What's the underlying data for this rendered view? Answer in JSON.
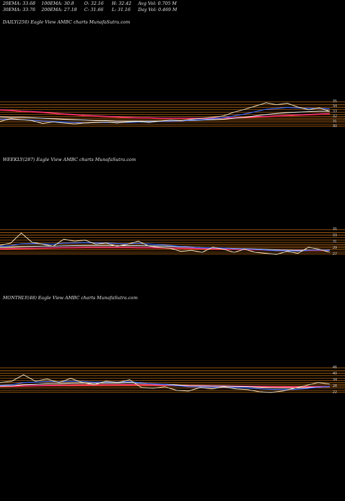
{
  "header": {
    "ema20": "20EMA: 33.68",
    "ema100": "100EMA: 30.8",
    "open": "O: 32.16",
    "high": "H: 32.42",
    "avg_vol": "Avg Vol: 0.705 M",
    "ema30": "30EMA: 33.76",
    "ema200": "200EMA: 27.18",
    "close": "C: 31.66",
    "low": "L: 31.16",
    "day_vol": "Day Vol: 0.469 M"
  },
  "colors": {
    "price": "#f5e6c0",
    "ema_blue": "#3a6bff",
    "ema_white": "#ffffff",
    "ema_pink": "#ff3aa0",
    "ema_red": "#ff2a2a",
    "hline": "#d4781a",
    "background": "#000000"
  },
  "chart_data": [
    {
      "type": "line",
      "title": "DAILY(250) Eagle  View  AMBC charts MunafaSutra.com",
      "right_ticks": [
        "35",
        "34",
        "33",
        "32",
        "31",
        "30"
      ],
      "price": [
        31.0,
        31.6,
        31.4,
        31.2,
        30.6,
        30.9,
        30.7,
        30.5,
        30.7,
        30.8,
        30.9,
        30.7,
        30.9,
        31.0,
        30.8,
        31.1,
        31.3,
        31.2,
        31.5,
        31.7,
        31.9,
        32.2,
        33.0,
        33.6,
        34.3,
        35.0,
        34.6,
        34.9,
        34.1,
        33.5,
        33.9,
        33.2
      ],
      "ema_fast": [
        31.5,
        31.5,
        31.4,
        31.3,
        31.1,
        31.0,
        30.9,
        30.8,
        30.7,
        30.8,
        30.8,
        30.8,
        30.8,
        30.9,
        30.9,
        31.0,
        31.1,
        31.1,
        31.3,
        31.4,
        31.6,
        31.8,
        32.2,
        32.6,
        33.1,
        33.6,
        33.8,
        34.0,
        33.9,
        33.8,
        33.8,
        33.7
      ],
      "ema_slow": [
        32.0,
        31.9,
        31.9,
        31.8,
        31.7,
        31.6,
        31.5,
        31.4,
        31.3,
        31.2,
        31.2,
        31.1,
        31.1,
        31.1,
        31.1,
        31.1,
        31.1,
        31.2,
        31.2,
        31.3,
        31.4,
        31.5,
        31.7,
        31.9,
        32.2,
        32.5,
        32.7,
        32.9,
        33.0,
        33.1,
        33.2,
        33.2
      ],
      "ema_long": [
        33.4,
        33.3,
        33.1,
        33.0,
        32.9,
        32.7,
        32.5,
        32.4,
        32.2,
        32.1,
        32.0,
        31.9,
        31.8,
        31.7,
        31.7,
        31.6,
        31.6,
        31.6,
        31.6,
        31.6,
        31.6,
        31.7,
        31.7,
        31.8,
        31.9,
        32.0,
        32.1,
        32.2,
        32.3,
        32.4,
        32.5,
        32.6
      ],
      "ylim": [
        29.5,
        36
      ]
    },
    {
      "type": "line",
      "title": "WEEKLY(287) Eagle  View  AMBC charts MunafaSutra.com",
      "right_ticks": [
        "35",
        "33",
        "31",
        "29",
        "27"
      ],
      "price": [
        30.5,
        31.5,
        36.5,
        32.0,
        31.0,
        30.0,
        33.5,
        32.5,
        33.0,
        31.0,
        31.5,
        30.0,
        31.0,
        32.5,
        30.0,
        29.5,
        29.0,
        27.5,
        28.0,
        27.0,
        29.5,
        28.5,
        27.0,
        28.5,
        27.0,
        26.5,
        26.0,
        27.5,
        26.5,
        29.5,
        28.5,
        27.0
      ],
      "ema_fast": [
        30.0,
        30.3,
        31.2,
        31.3,
        31.2,
        31.0,
        31.5,
        31.6,
        31.8,
        31.6,
        31.6,
        31.3,
        31.2,
        31.4,
        31.1,
        30.8,
        30.4,
        29.9,
        29.6,
        29.2,
        29.2,
        29.1,
        28.7,
        28.7,
        28.4,
        28.1,
        27.8,
        27.8,
        27.6,
        28.0,
        28.1,
        27.9
      ],
      "ema_slow": [
        29.5,
        29.6,
        29.8,
        29.9,
        30.0,
        30.0,
        30.2,
        30.3,
        30.4,
        30.4,
        30.4,
        30.3,
        30.3,
        30.3,
        30.2,
        30.1,
        29.9,
        29.7,
        29.5,
        29.3,
        29.2,
        29.1,
        28.9,
        28.8,
        28.6,
        28.4,
        28.2,
        28.1,
        28.0,
        28.1,
        28.1,
        28.1
      ],
      "ema_long": [
        28.5,
        28.6,
        28.7,
        28.8,
        28.9,
        29.0,
        29.1,
        29.1,
        29.2,
        29.2,
        29.2,
        29.2,
        29.2,
        29.1,
        29.1,
        29.0,
        28.9,
        28.8,
        28.7,
        28.6,
        28.5,
        28.4,
        28.3,
        28.2,
        28.1,
        28.0,
        27.9,
        27.8,
        27.8,
        27.8,
        27.8,
        27.8
      ],
      "ylim": [
        25,
        40
      ]
    },
    {
      "type": "line",
      "title": "MONTHLY(48) Eagle  View  AMBC charts MunafaSutra.com",
      "right_ticks": [
        "46",
        "40",
        "34",
        "28",
        "22"
      ],
      "price": [
        34.0,
        36.0,
        45.0,
        36.0,
        39.0,
        34.0,
        40.0,
        34.0,
        31.0,
        36.0,
        34.0,
        38.0,
        27.0,
        26.0,
        28.0,
        23.0,
        22.0,
        27.0,
        25.0,
        28.0,
        25.0,
        24.0,
        21.0,
        20.0,
        22.0,
        26.0,
        30.0,
        34.0,
        32.0
      ],
      "ema_fast": [
        30.0,
        31.0,
        34.0,
        34.5,
        35.5,
        35.0,
        36.0,
        35.5,
        34.5,
        34.8,
        34.6,
        35.3,
        33.5,
        32.0,
        31.2,
        29.5,
        28.0,
        27.8,
        27.3,
        27.4,
        26.9,
        26.4,
        25.3,
        24.3,
        23.9,
        24.3,
        25.5,
        27.4,
        28.3
      ],
      "ema_slow": [
        29.0,
        29.5,
        30.8,
        31.5,
        32.3,
        32.5,
        33.2,
        33.3,
        33.2,
        33.4,
        33.4,
        33.8,
        33.0,
        32.2,
        31.6,
        30.6,
        29.7,
        29.4,
        29.0,
        28.9,
        28.5,
        28.1,
        27.4,
        26.7,
        26.3,
        26.3,
        26.8,
        27.6,
        28.1
      ],
      "ema_long": [
        28.0,
        28.2,
        28.6,
        28.9,
        29.2,
        29.4,
        29.7,
        29.8,
        29.9,
        30.0,
        30.1,
        30.3,
        30.1,
        29.9,
        29.7,
        29.4,
        29.1,
        28.9,
        28.7,
        28.6,
        28.4,
        28.2,
        27.9,
        27.6,
        27.4,
        27.3,
        27.4,
        27.6,
        27.8
      ],
      "ylim": [
        17,
        60
      ]
    }
  ]
}
